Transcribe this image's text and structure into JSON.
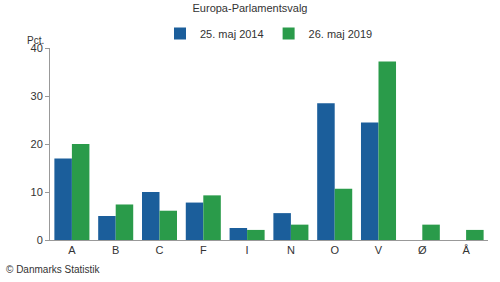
{
  "chart_data": {
    "type": "bar",
    "title": "Europa-Parlamentsvalg",
    "y_label": "Pct.",
    "note": "© Danmarks Statistik",
    "categories": [
      "A",
      "B",
      "C",
      "F",
      "I",
      "N",
      "O",
      "V",
      "Ø",
      "Å"
    ],
    "series": [
      {
        "name": "25. maj 2014",
        "color": "#1b5e9b",
        "values": [
          17,
          5,
          10,
          7.8,
          2.5,
          5.6,
          28.5,
          24.5,
          null,
          null
        ]
      },
      {
        "name": "26. maj 2019",
        "color": "#2a9b4a",
        "values": [
          20,
          7.4,
          6.1,
          9.3,
          2.1,
          3.2,
          10.7,
          37.2,
          3.2,
          2.1
        ]
      }
    ],
    "ylim": [
      0,
      40
    ],
    "yticks": [
      0,
      10,
      20,
      30,
      40
    ],
    "grid": false,
    "legend": "top"
  }
}
